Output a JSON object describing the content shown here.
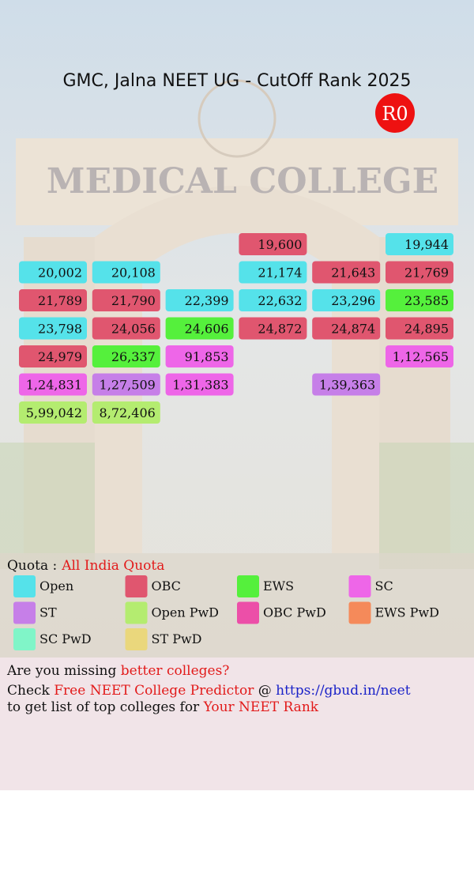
{
  "header": {
    "title": "GMC, Jalna NEET UG - CutOff Rank 2025",
    "round": "R0"
  },
  "background_sign": "MEDICAL COLLEGE",
  "cells": [
    {
      "rank": "19,600",
      "quota": "OBC"
    },
    {
      "rank": "19,944",
      "quota": "Open"
    },
    {
      "rank": "20,002",
      "quota": "Open"
    },
    {
      "rank": "20,108",
      "quota": "Open"
    },
    {
      "rank": "21,174",
      "quota": "Open"
    },
    {
      "rank": "21,643",
      "quota": "OBC"
    },
    {
      "rank": "21,769",
      "quota": "OBC"
    },
    {
      "rank": "21,789",
      "quota": "OBC"
    },
    {
      "rank": "21,790",
      "quota": "OBC"
    },
    {
      "rank": "22,399",
      "quota": "Open"
    },
    {
      "rank": "22,632",
      "quota": "Open"
    },
    {
      "rank": "23,296",
      "quota": "Open"
    },
    {
      "rank": "23,585",
      "quota": "EWS"
    },
    {
      "rank": "23,798",
      "quota": "Open"
    },
    {
      "rank": "24,056",
      "quota": "OBC"
    },
    {
      "rank": "24,606",
      "quota": "EWS"
    },
    {
      "rank": "24,872",
      "quota": "OBC"
    },
    {
      "rank": "24,874",
      "quota": "OBC"
    },
    {
      "rank": "24,895",
      "quota": "OBC"
    },
    {
      "rank": "24,979",
      "quota": "OBC"
    },
    {
      "rank": "26,337",
      "quota": "EWS"
    },
    {
      "rank": "91,853",
      "quota": "SC"
    },
    {
      "rank": "1,12,565",
      "quota": "SC"
    },
    {
      "rank": "1,24,831",
      "quota": "SC"
    },
    {
      "rank": "1,27,509",
      "quota": "ST"
    },
    {
      "rank": "1,31,383",
      "quota": "SC"
    },
    {
      "rank": "1,39,363",
      "quota": "ST"
    },
    {
      "rank": "5,99,042",
      "quota": "Open PwD"
    },
    {
      "rank": "8,72,406",
      "quota": "Open PwD"
    }
  ],
  "quota": {
    "label": "Quota :",
    "value": "All India Quota"
  },
  "legend": [
    {
      "name": "Open",
      "color": "#55e2ea"
    },
    {
      "name": "OBC",
      "color": "#e0566f"
    },
    {
      "name": "EWS",
      "color": "#55f03c"
    },
    {
      "name": "SC",
      "color": "#ee66e8"
    },
    {
      "name": "ST",
      "color": "#c67fe8"
    },
    {
      "name": "Open PwD",
      "color": "#b4ec70"
    },
    {
      "name": "OBC PwD",
      "color": "#ec4fa8"
    },
    {
      "name": "EWS PwD",
      "color": "#f58a5a"
    },
    {
      "name": "SC PwD",
      "color": "#80f5c8"
    },
    {
      "name": "ST PwD",
      "color": "#ead77c"
    }
  ],
  "footer": {
    "line1": [
      "Are you missing ",
      "better colleges?"
    ],
    "line2": [
      "Check ",
      "Free NEET College Predictor",
      " @ ",
      "https://gbud.in/neet"
    ],
    "line3": [
      "to get list of top colleges for ",
      "Your NEET Rank"
    ]
  }
}
